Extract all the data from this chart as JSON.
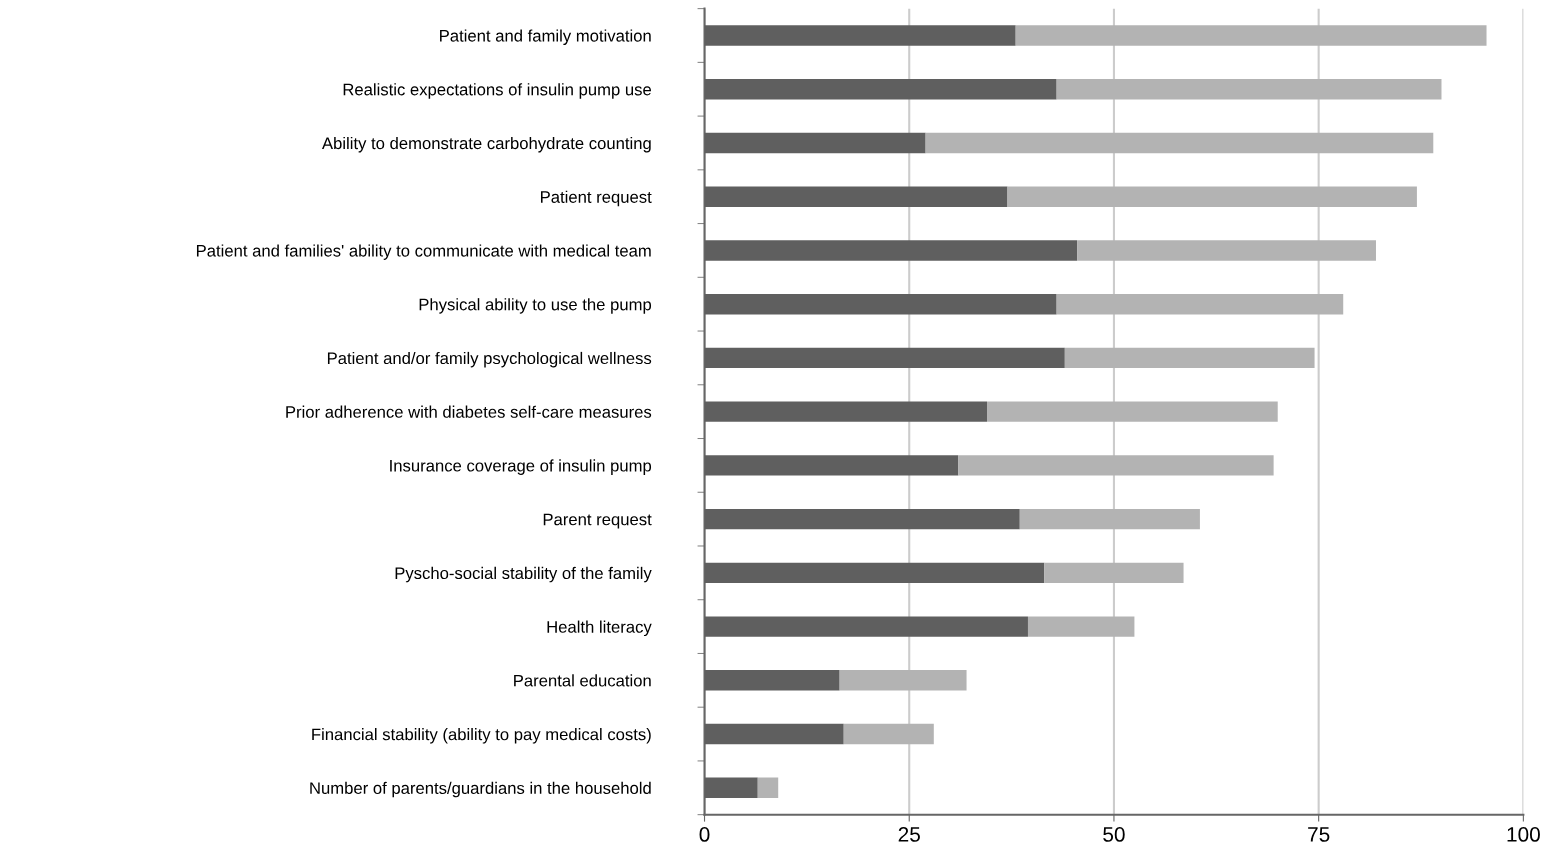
{
  "chart_data": {
    "type": "bar",
    "orientation": "horizontal",
    "stacked": true,
    "categories": [
      "Patient and family motivation",
      "Realistic expectations of insulin pump use",
      "Ability to demonstrate carbohydrate counting",
      "Patient request",
      "Patient and families' ability to communicate with medical team",
      "Physical ability to use the pump",
      "Patient and/or family psychological wellness",
      "Prior adherence with diabetes self-care measures",
      "Insurance coverage of insulin pump",
      "Parent request",
      "Pyscho-social stability of the family",
      "Health literacy",
      "Parental education",
      "Financial stability (ability to pay medical costs)",
      "Number of parents/guardians in the household"
    ],
    "series": [
      {
        "color": "#5f5f5f",
        "values": [
          38,
          43,
          27,
          37,
          45.5,
          43,
          44,
          34.5,
          31,
          38.5,
          41.5,
          39.5,
          16.5,
          17,
          6.5
        ]
      },
      {
        "color": "#b3b3b3",
        "values": [
          57.5,
          47,
          62,
          50,
          36.5,
          35,
          30.5,
          35.5,
          38.5,
          22,
          17,
          13,
          15.5,
          11,
          2.5
        ]
      }
    ],
    "xlim": [
      0,
      100
    ],
    "xticks": [
      0,
      25,
      50,
      75,
      100
    ],
    "grid": "x",
    "legend": false
  }
}
